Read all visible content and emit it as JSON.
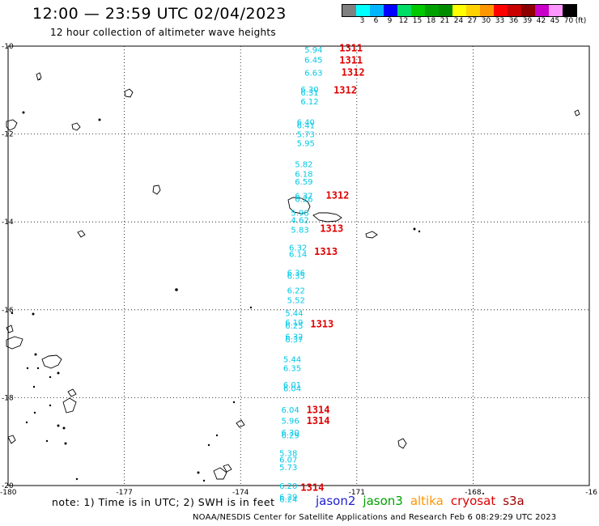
{
  "header": {
    "title": "12:00 — 23:59 UTC 02/04/2023",
    "subtitle": "12 hour collection of altimeter wave heights"
  },
  "colorbar": {
    "unit": "(ft)",
    "swatches": [
      {
        "label": "",
        "color": "#808080"
      },
      {
        "label": "3",
        "color": "#00ffff"
      },
      {
        "label": "6",
        "color": "#00b4ff"
      },
      {
        "label": "9",
        "color": "#0000ff"
      },
      {
        "label": "12",
        "color": "#00dc64"
      },
      {
        "label": "15",
        "color": "#00c800"
      },
      {
        "label": "18",
        "color": "#00a000"
      },
      {
        "label": "21",
        "color": "#008c00"
      },
      {
        "label": "24",
        "color": "#ffff00"
      },
      {
        "label": "27",
        "color": "#ffd200"
      },
      {
        "label": "30",
        "color": "#ff9600"
      },
      {
        "label": "33",
        "color": "#ff0000"
      },
      {
        "label": "36",
        "color": "#c80000"
      },
      {
        "label": "39",
        "color": "#8c0000"
      },
      {
        "label": "42",
        "color": "#c800c8"
      },
      {
        "label": "45",
        "color": "#ff96ff"
      },
      {
        "label": "70",
        "color": "#000000"
      }
    ]
  },
  "map": {
    "lat_labels": [
      "-10",
      "-12",
      "-14",
      "-16",
      "-18",
      "-20"
    ],
    "lon_labels": [
      "-180",
      "-177",
      "-174",
      "-171",
      "-168",
      "-16"
    ],
    "swh_values": [
      {
        "lat": -10.07,
        "lon": -172.35,
        "text": "5.94"
      },
      {
        "lat": -10.3,
        "lon": -172.35,
        "text": "6.45"
      },
      {
        "lat": -10.6,
        "lon": -172.35,
        "text": "6.63"
      },
      {
        "lat": -10.98,
        "lon": -172.45,
        "text": "6.30"
      },
      {
        "lat": -11.05,
        "lon": -172.45,
        "text": "6.31"
      },
      {
        "lat": -11.25,
        "lon": -172.45,
        "text": "6.12"
      },
      {
        "lat": -11.72,
        "lon": -172.55,
        "text": "6.40"
      },
      {
        "lat": -11.8,
        "lon": -172.55,
        "text": "6.41"
      },
      {
        "lat": -12.0,
        "lon": -172.55,
        "text": "5.73"
      },
      {
        "lat": -12.2,
        "lon": -172.55,
        "text": "5.95"
      },
      {
        "lat": -12.68,
        "lon": -172.6,
        "text": "5.82"
      },
      {
        "lat": -12.9,
        "lon": -172.6,
        "text": "6.18"
      },
      {
        "lat": -13.08,
        "lon": -172.6,
        "text": "6.59"
      },
      {
        "lat": -13.4,
        "lon": -172.6,
        "text": "6.37"
      },
      {
        "lat": -13.47,
        "lon": -172.6,
        "text": "6.26"
      },
      {
        "lat": -13.78,
        "lon": -172.7,
        "text": "5.98"
      },
      {
        "lat": -13.95,
        "lon": -172.7,
        "text": "4.62"
      },
      {
        "lat": -14.17,
        "lon": -172.7,
        "text": "5.83"
      },
      {
        "lat": -14.58,
        "lon": -172.75,
        "text": "6.32"
      },
      {
        "lat": -14.72,
        "lon": -172.75,
        "text": "6.14"
      },
      {
        "lat": -15.15,
        "lon": -172.8,
        "text": "6.36"
      },
      {
        "lat": -15.22,
        "lon": -172.8,
        "text": "6.35"
      },
      {
        "lat": -15.55,
        "lon": -172.8,
        "text": "6.22"
      },
      {
        "lat": -15.77,
        "lon": -172.8,
        "text": "5.52"
      },
      {
        "lat": -16.07,
        "lon": -172.85,
        "text": "5.44"
      },
      {
        "lat": -16.28,
        "lon": -172.85,
        "text": "6.19"
      },
      {
        "lat": -16.35,
        "lon": -172.85,
        "text": "6.25"
      },
      {
        "lat": -16.6,
        "lon": -172.85,
        "text": "6.32"
      },
      {
        "lat": -16.67,
        "lon": -172.85,
        "text": "6.37"
      },
      {
        "lat": -17.12,
        "lon": -172.9,
        "text": "5.44"
      },
      {
        "lat": -17.32,
        "lon": -172.9,
        "text": "6.35"
      },
      {
        "lat": -17.7,
        "lon": -172.9,
        "text": "6.01"
      },
      {
        "lat": -17.78,
        "lon": -172.9,
        "text": "6.04"
      },
      {
        "lat": -18.27,
        "lon": -172.95,
        "text": "6.04"
      },
      {
        "lat": -18.52,
        "lon": -172.95,
        "text": "5.96"
      },
      {
        "lat": -18.78,
        "lon": -172.95,
        "text": "6.30"
      },
      {
        "lat": -18.85,
        "lon": -172.95,
        "text": "6.29"
      },
      {
        "lat": -19.25,
        "lon": -173.0,
        "text": "5.38"
      },
      {
        "lat": -19.4,
        "lon": -173.0,
        "text": "6.07"
      },
      {
        "lat": -19.58,
        "lon": -173.0,
        "text": "5.73"
      },
      {
        "lat": -20.0,
        "lon": -173.0,
        "text": "6.20"
      },
      {
        "lat": -20.25,
        "lon": -173.0,
        "text": "6.29"
      },
      {
        "lat": -20.3,
        "lon": -173.0,
        "text": "6.24"
      }
    ],
    "timestamps": [
      {
        "lat": -10.05,
        "lon": -171.45,
        "text": "1311"
      },
      {
        "lat": -10.32,
        "lon": -171.45,
        "text": "1311"
      },
      {
        "lat": -10.6,
        "lon": -171.4,
        "text": "1312"
      },
      {
        "lat": -11.0,
        "lon": -171.6,
        "text": "1312"
      },
      {
        "lat": -13.4,
        "lon": -171.8,
        "text": "1312"
      },
      {
        "lat": -14.15,
        "lon": -171.95,
        "text": "1313"
      },
      {
        "lat": -14.68,
        "lon": -172.1,
        "text": "1313"
      },
      {
        "lat": -16.33,
        "lon": -172.2,
        "text": "1313"
      },
      {
        "lat": -18.28,
        "lon": -172.3,
        "text": "1314"
      },
      {
        "lat": -18.53,
        "lon": -172.3,
        "text": "1314"
      },
      {
        "lat": -20.05,
        "lon": -172.45,
        "text": "1314"
      }
    ]
  },
  "note": "note:  1) Time is in UTC; 2) SWH is in feet",
  "legend": {
    "items": [
      {
        "label": "jason2",
        "color": "#1e1ed2"
      },
      {
        "label": "jason3",
        "color": "#00a000"
      },
      {
        "label": "altika",
        "color": "#ff9600"
      },
      {
        "label": "cryosat",
        "color": "#e00000"
      },
      {
        "label": "s3a",
        "color": "#a00000"
      }
    ]
  },
  "footer": "NOAA/NESDIS Center for Satellite Applications and Research    Feb  6 08:29:29 UTC 2023"
}
